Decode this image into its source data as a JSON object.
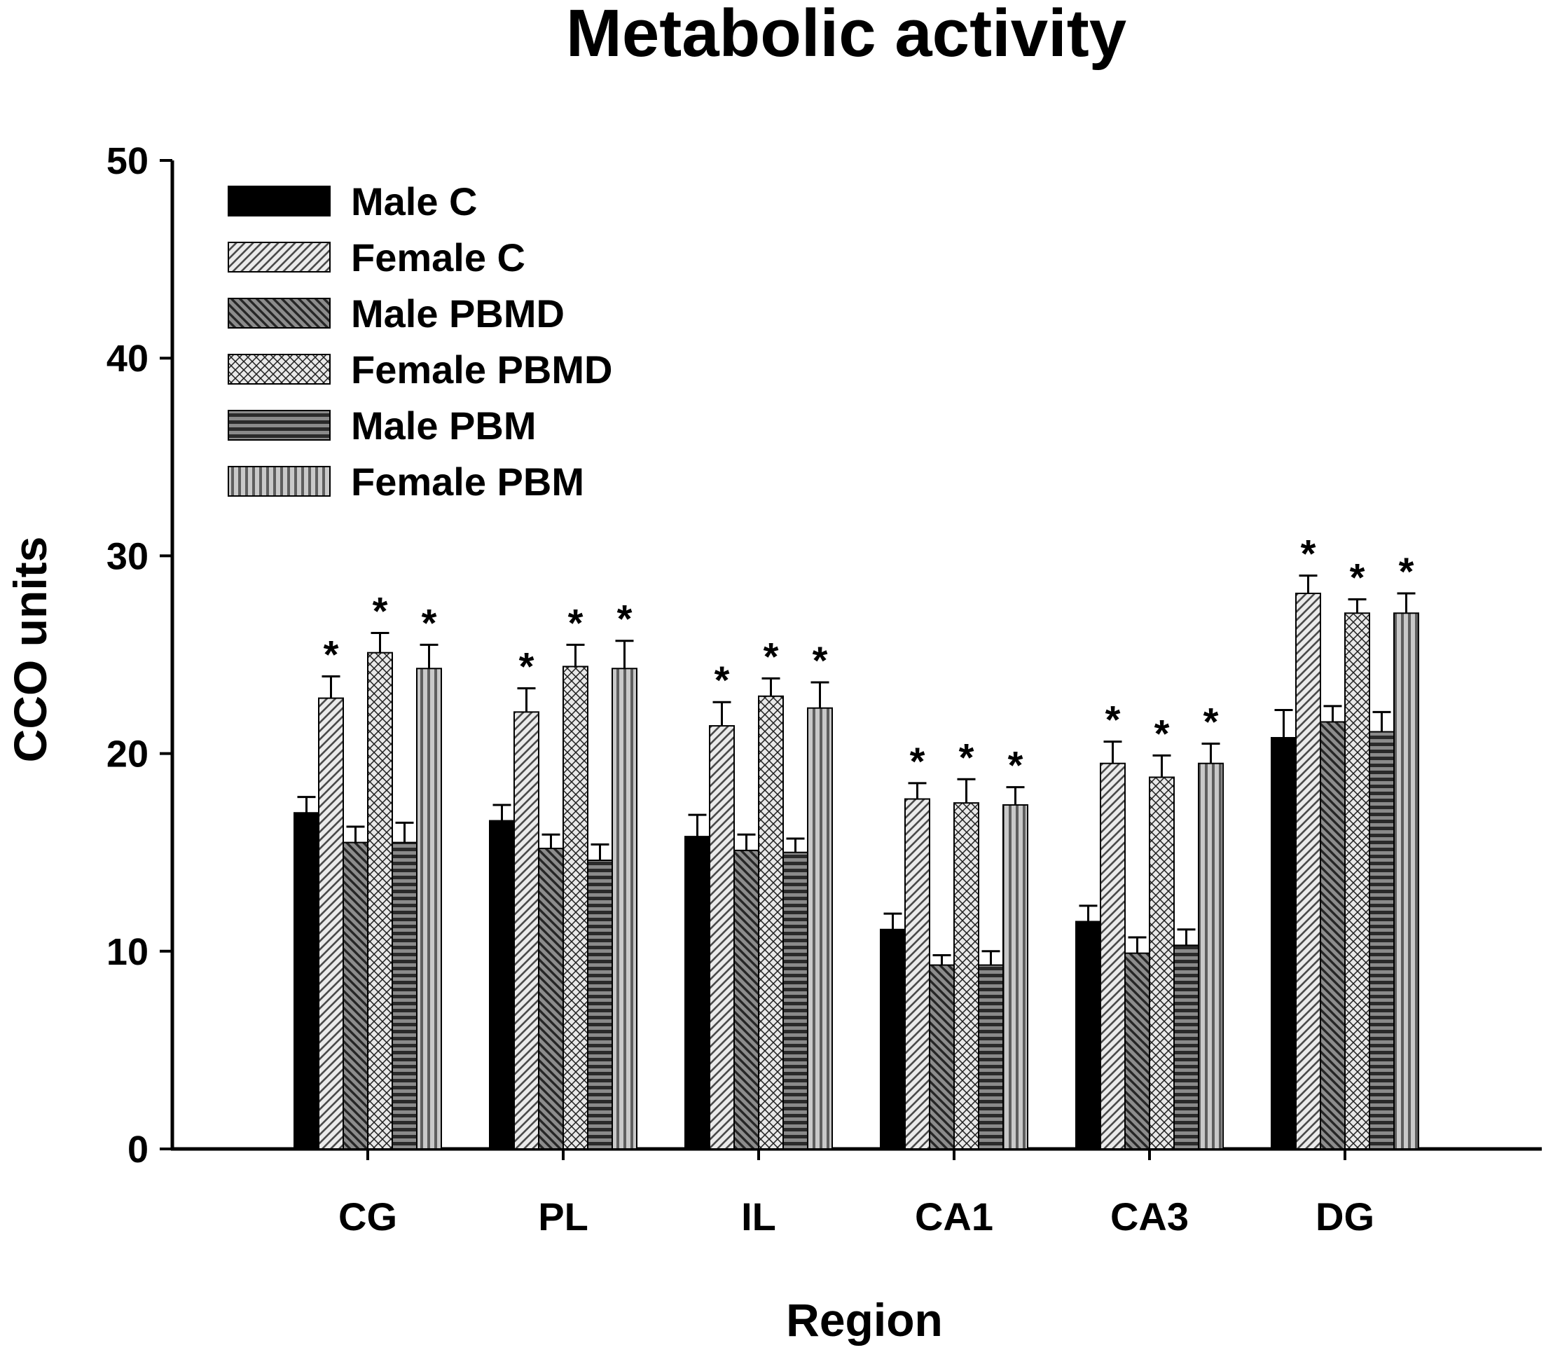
{
  "chart_data": {
    "type": "bar",
    "title": "Metabolic activity",
    "xlabel": "Region",
    "ylabel": "CCO units",
    "ylim": [
      0,
      50
    ],
    "yticks": [
      0,
      10,
      20,
      30,
      40,
      50
    ],
    "grid": false,
    "legend_position": "top-left",
    "significance_marker": "*",
    "categories": [
      "CG",
      "PL",
      "IL",
      "CA1",
      "CA3",
      "DG"
    ],
    "series": [
      {
        "name": "Male C",
        "pattern": "solid-black",
        "values": [
          17.0,
          16.6,
          15.8,
          11.1,
          11.5,
          20.8
        ],
        "errors": [
          0.8,
          0.8,
          1.1,
          0.8,
          0.8,
          1.4
        ],
        "significant": [
          false,
          false,
          false,
          false,
          false,
          false
        ]
      },
      {
        "name": "Female C",
        "pattern": "diagonal-light",
        "values": [
          22.8,
          22.1,
          21.4,
          17.7,
          19.5,
          28.1
        ],
        "errors": [
          1.1,
          1.2,
          1.2,
          0.8,
          1.1,
          0.9
        ],
        "significant": [
          true,
          true,
          true,
          true,
          true,
          true
        ]
      },
      {
        "name": "Male PBMD",
        "pattern": "diagonal-dark",
        "values": [
          15.5,
          15.2,
          15.1,
          9.3,
          9.9,
          21.6
        ],
        "errors": [
          0.8,
          0.7,
          0.8,
          0.5,
          0.8,
          0.8
        ],
        "significant": [
          false,
          false,
          false,
          false,
          false,
          false
        ]
      },
      {
        "name": "Female PBMD",
        "pattern": "checker",
        "values": [
          25.1,
          24.4,
          22.9,
          17.5,
          18.8,
          27.1
        ],
        "errors": [
          1.0,
          1.1,
          0.9,
          1.2,
          1.1,
          0.7
        ],
        "significant": [
          true,
          true,
          true,
          true,
          true,
          true
        ]
      },
      {
        "name": "Male PBM",
        "pattern": "horizontal-dark",
        "values": [
          15.5,
          14.6,
          15.0,
          9.3,
          10.3,
          21.1
        ],
        "errors": [
          1.0,
          0.8,
          0.7,
          0.7,
          0.8,
          1.0
        ],
        "significant": [
          false,
          false,
          false,
          false,
          false,
          false
        ]
      },
      {
        "name": "Female PBM",
        "pattern": "vertical-gray",
        "values": [
          24.3,
          24.3,
          22.3,
          17.4,
          19.5,
          27.1
        ],
        "errors": [
          1.2,
          1.4,
          1.3,
          0.9,
          1.0,
          1.0
        ],
        "significant": [
          true,
          true,
          true,
          true,
          true,
          true
        ]
      }
    ]
  }
}
